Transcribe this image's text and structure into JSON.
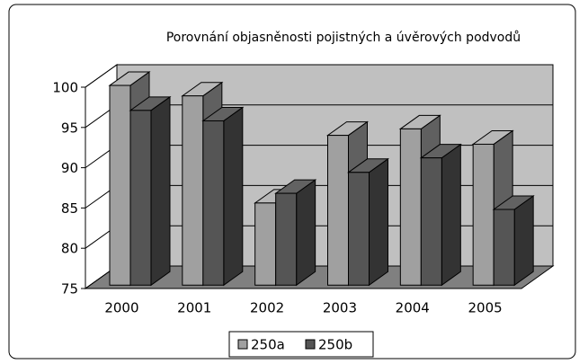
{
  "chart_data": {
    "type": "bar3d",
    "title": "Porovnání objasněnosti pojistných a úvěrových podvodů",
    "categories": [
      "2000",
      "2001",
      "2002",
      "2003",
      "2004",
      "2005"
    ],
    "series": [
      {
        "name": "250a",
        "color": "#a0a0a0",
        "values": [
          99.8,
          98.5,
          85.2,
          93.6,
          94.4,
          92.5
        ]
      },
      {
        "name": "250b",
        "color": "#555555",
        "values": [
          96.7,
          95.4,
          86.4,
          89.0,
          90.8,
          84.4
        ]
      }
    ],
    "ylim": [
      75,
      100
    ],
    "yticks": [
      75,
      80,
      85,
      90,
      95,
      100
    ],
    "grid": true,
    "legend": "bottom"
  }
}
